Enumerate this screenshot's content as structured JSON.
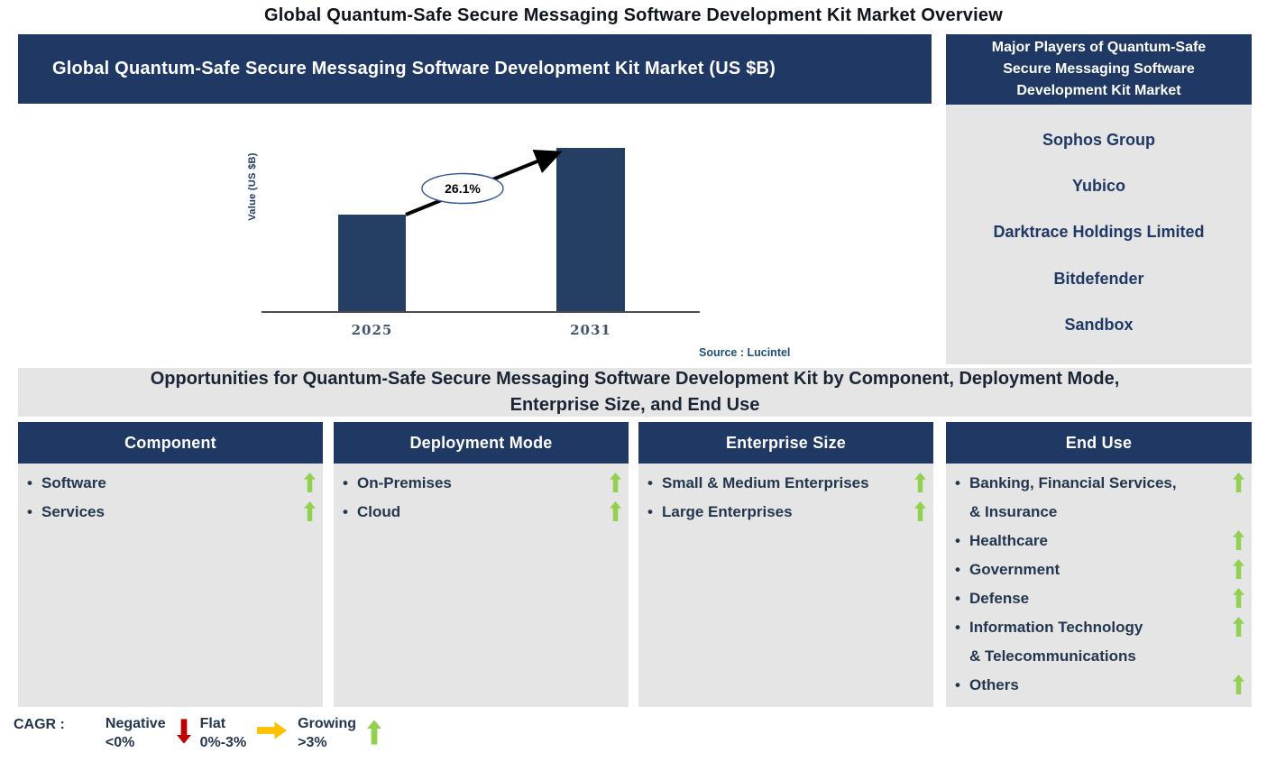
{
  "colors": {
    "navy": "#1F3864",
    "bar": "#243F63",
    "gray": "#E5E5E5",
    "dark": "#24364F",
    "tick": "#44546A",
    "axis": "#4d4d4d",
    "source": "#1F4E79",
    "green": "#92D050",
    "red": "#C00000",
    "yellow": "#FFC000"
  },
  "page_title": "Global Quantum-Safe Secure Messaging Software Development Kit Market Overview",
  "market_chart": {
    "header": "Global Quantum-Safe Secure Messaging Software Development Kit Market (US $B)",
    "ylabel": "Value (US $B)",
    "cagr_label": "26.1%",
    "source": "Source : Lucintel"
  },
  "chart_data": {
    "type": "bar",
    "title": "Global Quantum-Safe Secure Messaging Software Development Kit Market (US $B)",
    "ylabel": "Value (US $B)",
    "categories": [
      "2025",
      "2031"
    ],
    "values_relative_height": [
      0.59,
      1.0
    ],
    "value_axis_ticks_shown": false,
    "grid": false,
    "bar_color": "#243F63",
    "annotation": "26.1%",
    "annotation_meaning": "CAGR arrow from 2025 bar to 2031 bar",
    "source": "Source : Lucintel"
  },
  "major_players": {
    "header": "Major Players of Quantum-Safe\nSecure Messaging Software\nDevelopment Kit Market",
    "players": [
      "Sophos Group",
      "Yubico",
      "Darktrace Holdings Limited",
      "Bitdefender",
      "Sandbox"
    ]
  },
  "opportunities": {
    "banner": "Opportunities for Quantum-Safe Secure Messaging Software Development Kit by Component, Deployment Mode,\nEnterprise Size, and End Use",
    "columns": [
      {
        "header": "Component",
        "items": [
          {
            "label": "Software",
            "trend": "growing"
          },
          {
            "label": "Services",
            "trend": "growing"
          }
        ]
      },
      {
        "header": "Deployment Mode",
        "items": [
          {
            "label": "On-Premises",
            "trend": "growing"
          },
          {
            "label": "Cloud",
            "trend": "growing"
          }
        ]
      },
      {
        "header": "Enterprise Size",
        "items": [
          {
            "label": "Small & Medium Enterprises",
            "trend": "growing"
          },
          {
            "label": "Large Enterprises",
            "trend": "growing"
          }
        ]
      },
      {
        "header": "End Use",
        "items": [
          {
            "label": "Banking, Financial Services,\n& Insurance",
            "trend": "growing"
          },
          {
            "label": "Healthcare",
            "trend": "growing"
          },
          {
            "label": "Government",
            "trend": "growing"
          },
          {
            "label": "Defense",
            "trend": "growing"
          },
          {
            "label": "Information Technology\n& Telecommunications",
            "trend": "growing"
          },
          {
            "label": "Others",
            "trend": "growing"
          }
        ]
      }
    ]
  },
  "legend": {
    "label": "CAGR :",
    "items": [
      {
        "name": "Negative",
        "range": "<0%",
        "direction": "down",
        "color": "#C00000"
      },
      {
        "name": "Flat",
        "range": "0%-3%",
        "direction": "right",
        "color": "#FFC000"
      },
      {
        "name": "Growing",
        "range": ">3%",
        "direction": "up",
        "color": "#92D050"
      }
    ]
  }
}
